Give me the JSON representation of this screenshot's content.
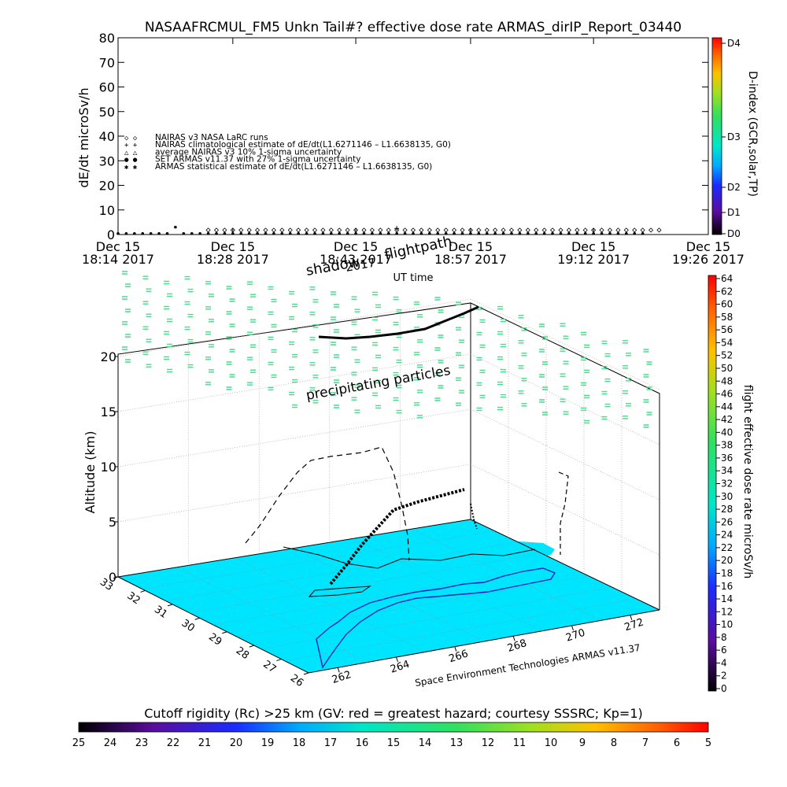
{
  "title": "NASAAFRCMUL_FM5 Unkn Tail#? effective dose rate ARMAS_dirIP_Report_03440",
  "chart_data": [
    {
      "type": "scatter",
      "name": "effective-dose-rate-timeseries",
      "ylabel": "dE/dt microSv/h",
      "xlabel": "UT time",
      "ylim": [
        0,
        80
      ],
      "yticks": [
        0,
        10,
        20,
        30,
        40,
        50,
        60,
        70,
        80
      ],
      "xlim_minutes": [
        0,
        72
      ],
      "xticks": [
        {
          "t": 0,
          "line1": "Dec 15",
          "line2": "18:14 2017"
        },
        {
          "t": 14,
          "line1": "Dec 15",
          "line2": "18:28 2017"
        },
        {
          "t": 29,
          "line1": "Dec 15",
          "line2": "18:43 2017"
        },
        {
          "t": 43,
          "line1": "Dec 15",
          "line2": "18:57 2017"
        },
        {
          "t": 58,
          "line1": "Dec 15",
          "line2": "19:12 2017"
        },
        {
          "t": 72,
          "line1": "Dec 15",
          "line2": "19:26 2017"
        }
      ],
      "legend": [
        {
          "sym": "◇ ◇",
          "label": "NAIRAS v3 NASA LaRC runs"
        },
        {
          "sym": "+ +",
          "label": "NAIRAS climatological estimate of dE/dt(L1.6271146 – L1.6638135, G0)"
        },
        {
          "sym": "△ △",
          "label": "average NAIRAS v3 10% 1-sigma uncertainty"
        },
        {
          "sym": "● ●",
          "label": "SET ARMAS v11.37 with 27% 1-sigma uncertainty"
        },
        {
          "sym": "✱ ✱",
          "label": "ARMAS statistical estimate of dE/dt(L1.6271146 – L1.6638135, G0)"
        }
      ],
      "series": [
        {
          "name": "NAIRAS v3 NASA LaRC runs",
          "marker": "diamond",
          "x_start": 11,
          "x_end": 66,
          "x_step": 1,
          "value": 1.8
        },
        {
          "name": "NAIRAS climatological estimate",
          "marker": "plus",
          "points": [
            [
              34,
              2.5
            ]
          ]
        },
        {
          "name": "SET ARMAS v11.37",
          "marker": "dot",
          "x_start": 0,
          "x_end": 64,
          "x_step": 1,
          "value": 0.4,
          "peak": [
            7,
            3
          ]
        }
      ],
      "right_axis": {
        "label": "D-index (GCR,solar,TP)",
        "ticks": [
          "D0",
          "D1",
          "D2",
          "D3",
          "D4"
        ]
      }
    },
    {
      "type": "scatter",
      "name": "3d-flightpath",
      "zlabel": "Altitude (km)",
      "zticks": [
        0,
        5,
        10,
        15,
        20
      ],
      "lat_ticks": [
        33,
        32,
        31,
        30,
        29,
        28,
        27,
        26
      ],
      "lon_ticks": [
        262,
        264,
        266,
        268,
        270,
        272
      ],
      "annotations": [
        "shadow",
        "flightpath",
        "precipitating particles",
        "2017"
      ],
      "credit": "Space Environment Technologies ARMAS v11.37"
    }
  ],
  "colorbar_right": {
    "label": "flight effective dose rate microSv/h",
    "ticks": [
      0,
      2,
      4,
      6,
      8,
      10,
      12,
      14,
      16,
      18,
      20,
      22,
      24,
      26,
      28,
      30,
      32,
      34,
      36,
      38,
      40,
      42,
      44,
      46,
      48,
      50,
      52,
      54,
      56,
      58,
      60,
      62,
      64
    ]
  },
  "colorbar_bottom": {
    "label": "Cutoff rigidity (Rc) >25 km (GV: red = greatest hazard; courtesy SSSRC; Kp=1)",
    "ticks": [
      25,
      24,
      23,
      22,
      21,
      20,
      19,
      18,
      17,
      16,
      15,
      14,
      13,
      12,
      11,
      10,
      9,
      8,
      7,
      6,
      5
    ]
  },
  "colors": {
    "ocean": "#00e5ff",
    "land": "#ffffff",
    "cloud": "#44dd88",
    "path": "#000000"
  }
}
